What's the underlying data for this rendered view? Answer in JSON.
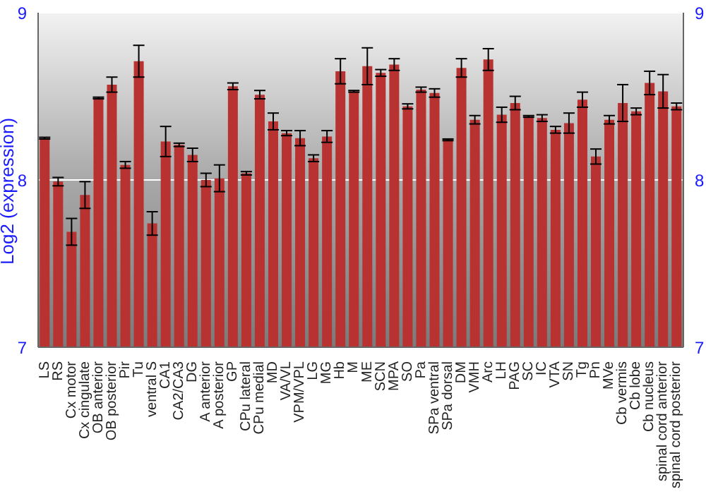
{
  "chart_data": {
    "type": "bar",
    "ylabel": "Log2 (expression)",
    "categories": [
      "LS",
      "RS",
      "Cx motor",
      "Cx cingulate",
      "OB anterior",
      "OB posterior",
      "Pir",
      "Tu",
      "ventral S",
      "CA1",
      "CA2/CA3",
      "DG",
      "A anterior",
      "A posterior",
      "GP",
      "CPu lateral",
      "CPu medial",
      "MD",
      "VA/VL",
      "VPM/VPL",
      "LG",
      "MG",
      "Hb",
      "M",
      "ME",
      "SCN",
      "MPA",
      "SO",
      "Pa",
      "SPa ventral",
      "SPa dorsal",
      "DM",
      "VMH",
      "Arc",
      "LH",
      "PAG",
      "SC",
      "IC",
      "VTA",
      "SN",
      "Tg",
      "Pn",
      "MVe",
      "Cb vermis",
      "Cb lobe",
      "Cb nucleus",
      "spinal cord anterior",
      "spinal cord posterior"
    ],
    "values": [
      8.25,
      7.99,
      7.69,
      7.91,
      8.49,
      8.57,
      8.09,
      8.71,
      7.74,
      8.23,
      8.21,
      8.15,
      8.0,
      8.01,
      8.56,
      8.04,
      8.51,
      8.35,
      8.28,
      8.25,
      8.13,
      8.26,
      8.65,
      8.53,
      8.68,
      8.64,
      8.69,
      8.44,
      8.54,
      8.52,
      8.24,
      8.67,
      8.36,
      8.72,
      8.39,
      8.46,
      8.38,
      8.37,
      8.3,
      8.34,
      8.48,
      8.14,
      8.36,
      8.46,
      8.41,
      8.58,
      8.53,
      8.44
    ],
    "errors": [
      0.005,
      0.025,
      0.08,
      0.08,
      0.005,
      0.045,
      0.02,
      0.095,
      0.07,
      0.09,
      0.01,
      0.04,
      0.04,
      0.08,
      0.02,
      0.01,
      0.025,
      0.05,
      0.015,
      0.045,
      0.02,
      0.035,
      0.075,
      0.005,
      0.11,
      0.02,
      0.035,
      0.015,
      0.015,
      0.025,
      0.005,
      0.055,
      0.025,
      0.065,
      0.045,
      0.04,
      0.005,
      0.02,
      0.02,
      0.06,
      0.045,
      0.045,
      0.025,
      0.11,
      0.02,
      0.07,
      0.1,
      0.02
    ],
    "color": "#b83232",
    "ylim": [
      7,
      9
    ],
    "yticks": [
      7,
      8,
      9
    ],
    "y2lim": [
      7,
      9
    ],
    "y2ticks": [
      7,
      8,
      9
    ],
    "grid": "y"
  }
}
